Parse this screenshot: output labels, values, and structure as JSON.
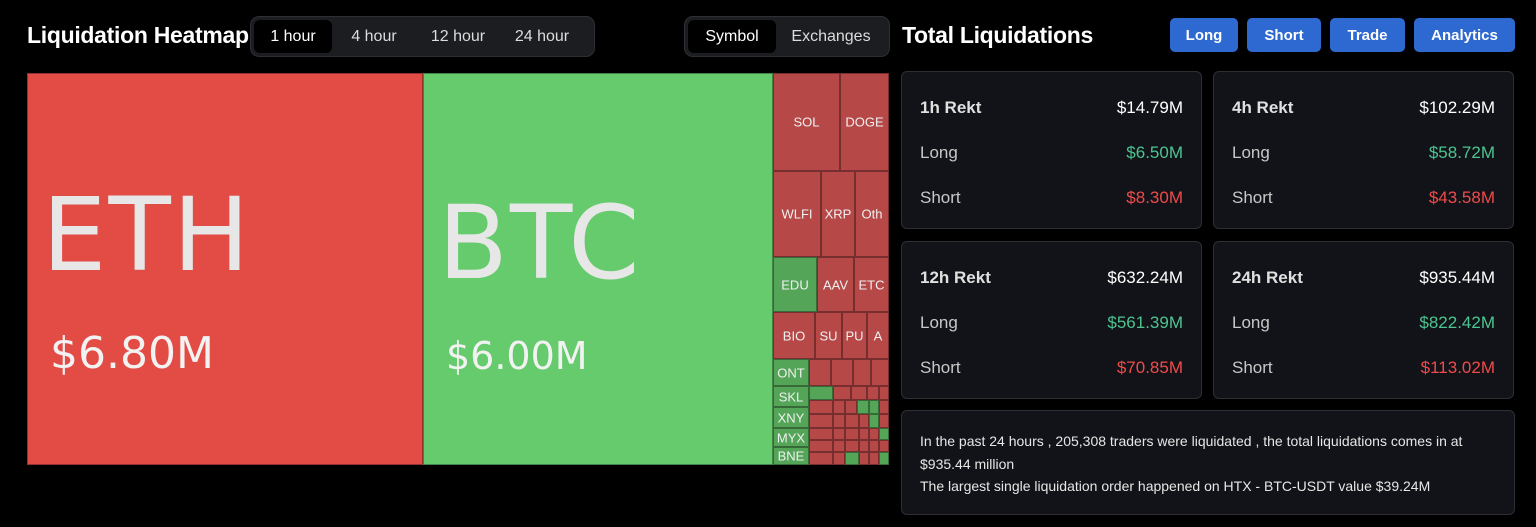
{
  "heatmap": {
    "title": "Liquidation Heatmap",
    "time_options": [
      "1 hour",
      "4 hour",
      "12 hour",
      "24 hour"
    ],
    "view_options": [
      "Symbol",
      "Exchanges"
    ],
    "eth": {
      "symbol": "ETH",
      "value": "$6.80M"
    },
    "btc": {
      "symbol": "BTC",
      "value": "$6.00M"
    },
    "small_labels": {
      "sol": "SOL",
      "doge": "DOGE",
      "wlfi": "WLFI",
      "xrp": "XRP",
      "other": "Oth",
      "edu": "EDU",
      "aave": "AAV",
      "etc": "ETC",
      "bio": "BIO",
      "su": "SU",
      "pu": "PU",
      "a": "A",
      "ont": "ONT",
      "skl": "SKL",
      "xny": "XNY",
      "myx": "MYX",
      "bnb": "BNE"
    }
  },
  "totals": {
    "title": "Total Liquidations",
    "buttons": [
      "Long",
      "Short",
      "Trade",
      "Analytics"
    ],
    "cards": [
      {
        "label": "1h Rekt",
        "total": "$14.79M",
        "long_label": "Long",
        "long": "$6.50M",
        "short_label": "Short",
        "short": "$8.30M"
      },
      {
        "label": "4h Rekt",
        "total": "$102.29M",
        "long_label": "Long",
        "long": "$58.72M",
        "short_label": "Short",
        "short": "$43.58M"
      },
      {
        "label": "12h Rekt",
        "total": "$632.24M",
        "long_label": "Long",
        "long": "$561.39M",
        "short_label": "Short",
        "short": "$70.85M"
      },
      {
        "label": "24h Rekt",
        "total": "$935.44M",
        "long_label": "Long",
        "long": "$822.42M",
        "short_label": "Short",
        "short": "$113.02M"
      }
    ],
    "summary_line1": "In the past 24 hours , 205,308 traders were liquidated , the total liquidations comes in at $935.44 million",
    "summary_line2": "The largest single liquidation order happened on HTX - BTC-USDT value $39.24M"
  },
  "colors": {
    "long_red_big": "#e34b45",
    "short_green_big": "#66cb6c",
    "cell_red": "#b64847",
    "cell_green": "#54a558",
    "accent_button": "#2e69d1",
    "positive_text": "#4cc490",
    "negative_text": "#ef4b4b"
  }
}
